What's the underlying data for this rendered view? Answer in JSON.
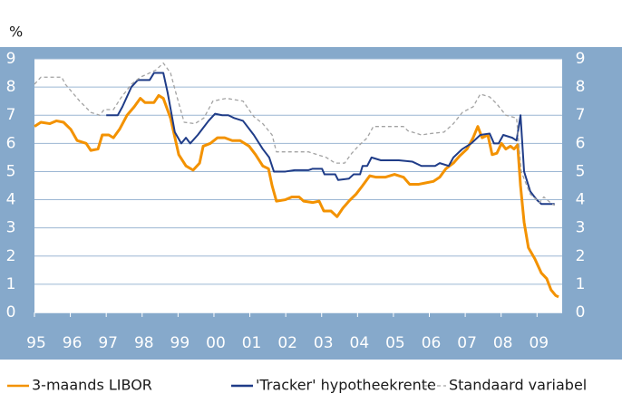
{
  "chart_data": {
    "type": "line",
    "y_label": "%",
    "xlim": [
      1995,
      2009.7
    ],
    "ylim": [
      0,
      9
    ],
    "xticks": [
      {
        "value": 1995,
        "label": "95"
      },
      {
        "value": 1996,
        "label": "96"
      },
      {
        "value": 1997,
        "label": "97"
      },
      {
        "value": 1998,
        "label": "98"
      },
      {
        "value": 1999,
        "label": "99"
      },
      {
        "value": 2000,
        "label": "00"
      },
      {
        "value": 2001,
        "label": "01"
      },
      {
        "value": 2002,
        "label": "02"
      },
      {
        "value": 2003,
        "label": "03"
      },
      {
        "value": 2004,
        "label": "04"
      },
      {
        "value": 2005,
        "label": "05"
      },
      {
        "value": 2006,
        "label": "06"
      },
      {
        "value": 2007,
        "label": "07"
      },
      {
        "value": 2008,
        "label": "08"
      },
      {
        "value": 2009,
        "label": "09"
      }
    ],
    "yticks": [
      0,
      1,
      2,
      3,
      4,
      5,
      6,
      7,
      8,
      9
    ],
    "grid": true,
    "series": [
      {
        "name": "3-maands LIBOR",
        "color": "#f39200",
        "dash": false,
        "x": [
          1995,
          1995.18,
          1995.43,
          1995.61,
          1995.81,
          1996.01,
          1996.19,
          1996.44,
          1996.57,
          1996.77,
          1996.89,
          1997.07,
          1997.2,
          1997.37,
          1997.58,
          1997.78,
          1997.95,
          1998.08,
          1998.33,
          1998.46,
          1998.59,
          1998.79,
          1999.02,
          1999.22,
          1999.42,
          1999.6,
          1999.7,
          1999.9,
          2000.1,
          2000.3,
          2000.51,
          2000.73,
          2000.98,
          2001.16,
          2001.36,
          2001.52,
          2001.62,
          2001.74,
          2001.99,
          2002.17,
          2002.37,
          2002.5,
          2002.75,
          2002.93,
          2003.06,
          2003.26,
          2003.43,
          2003.59,
          2003.76,
          2003.96,
          2004.14,
          2004.34,
          2004.52,
          2004.77,
          2005.03,
          2005.28,
          2005.45,
          2005.71,
          2005.91,
          2006.11,
          2006.29,
          2006.46,
          2006.67,
          2006.84,
          2007.05,
          2007.22,
          2007.35,
          2007.47,
          2007.63,
          2007.75,
          2007.88,
          2008.01,
          2008.13,
          2008.26,
          2008.36,
          2008.46,
          2008.54,
          2008.64,
          2008.76,
          2008.94,
          2009.12,
          2009.27,
          2009.39,
          2009.52,
          2009.6
        ],
        "values": [
          6.6,
          6.75,
          6.7,
          6.8,
          6.75,
          6.5,
          6.1,
          6.0,
          5.75,
          5.8,
          6.3,
          6.3,
          6.2,
          6.5,
          7.0,
          7.3,
          7.6,
          7.45,
          7.45,
          7.7,
          7.6,
          6.9,
          5.6,
          5.2,
          5.05,
          5.3,
          5.9,
          6.0,
          6.2,
          6.2,
          6.1,
          6.1,
          5.9,
          5.6,
          5.2,
          5.1,
          4.5,
          3.95,
          4.0,
          4.1,
          4.1,
          3.95,
          3.9,
          3.95,
          3.6,
          3.6,
          3.4,
          3.7,
          3.95,
          4.2,
          4.5,
          4.85,
          4.8,
          4.8,
          4.9,
          4.8,
          4.55,
          4.55,
          4.6,
          4.65,
          4.8,
          5.1,
          5.3,
          5.55,
          5.8,
          6.2,
          6.6,
          6.2,
          6.3,
          5.6,
          5.65,
          6.0,
          5.8,
          5.9,
          5.8,
          5.95,
          4.5,
          3.2,
          2.3,
          1.9,
          1.4,
          1.2,
          0.8,
          0.6,
          0.55
        ]
      },
      {
        "name": "'Tracker' hypotheekrente",
        "color": "#1f3c88",
        "dash": false,
        "x": [
          1997,
          1997.32,
          1997.45,
          1997.7,
          1997.88,
          1998.21,
          1998.33,
          1998.59,
          1998.71,
          1998.91,
          1999.09,
          1999.22,
          1999.34,
          1999.55,
          1999.67,
          1999.85,
          2000.03,
          2000.23,
          2000.4,
          2000.56,
          2000.81,
          2001.11,
          2001.36,
          2001.54,
          2001.67,
          2001.99,
          2002.25,
          2002.63,
          2002.75,
          2003.01,
          2003.08,
          2003.38,
          2003.46,
          2003.76,
          2003.89,
          2004.07,
          2004.14,
          2004.27,
          2004.39,
          2004.65,
          2005.15,
          2005.53,
          2005.78,
          2006.16,
          2006.29,
          2006.54,
          2006.67,
          2006.92,
          2007.17,
          2007.42,
          2007.68,
          2007.8,
          2007.93,
          2008.06,
          2008.31,
          2008.43,
          2008.54,
          2008.64,
          2008.81,
          2008.99,
          2009.12,
          2009.27,
          2009.49
        ],
        "values": [
          7.0,
          7.0,
          7.3,
          8.0,
          8.25,
          8.25,
          8.5,
          8.5,
          7.8,
          6.4,
          6.0,
          6.2,
          6.0,
          6.3,
          6.5,
          6.8,
          7.05,
          7.0,
          7.0,
          6.9,
          6.8,
          6.3,
          5.8,
          5.5,
          5.0,
          5.0,
          5.05,
          5.05,
          5.1,
          5.1,
          4.9,
          4.9,
          4.7,
          4.75,
          4.9,
          4.9,
          5.2,
          5.2,
          5.5,
          5.4,
          5.4,
          5.35,
          5.2,
          5.2,
          5.3,
          5.2,
          5.5,
          5.8,
          6.0,
          6.3,
          6.35,
          6.0,
          6.0,
          6.3,
          6.2,
          6.1,
          7.0,
          5.0,
          4.3,
          4.0,
          3.85,
          3.85,
          3.85
        ]
      },
      {
        "name": "Standaard variabel",
        "color": "#a3a3a3",
        "dash": true,
        "x": [
          1995,
          1995.18,
          1995.76,
          1995.86,
          1996.06,
          1996.26,
          1996.57,
          1996.82,
          1996.94,
          1997.2,
          1997.4,
          1997.7,
          1997.95,
          1998.21,
          1998.38,
          1998.59,
          1998.79,
          1998.96,
          1999.17,
          1999.47,
          1999.72,
          1999.97,
          2000.35,
          2000.81,
          2001.11,
          2001.36,
          2001.62,
          2001.74,
          2002.63,
          2002.88,
          2003.13,
          2003.38,
          2003.64,
          2003.84,
          2004.02,
          2004.27,
          2004.44,
          2005.28,
          2005.4,
          2005.78,
          2006.04,
          2006.41,
          2006.67,
          2006.92,
          2007.22,
          2007.42,
          2007.68,
          2007.88,
          2008.13,
          2008.43,
          2008.56,
          2008.81,
          2009.07,
          2009.19,
          2009.37,
          2009.49
        ],
        "values": [
          8.1,
          8.35,
          8.35,
          8.1,
          7.8,
          7.5,
          7.1,
          7.0,
          7.2,
          7.2,
          7.6,
          8.1,
          8.35,
          8.5,
          8.6,
          8.85,
          8.5,
          7.7,
          6.75,
          6.7,
          6.9,
          7.5,
          7.6,
          7.5,
          6.95,
          6.7,
          6.3,
          5.7,
          5.7,
          5.6,
          5.5,
          5.3,
          5.3,
          5.65,
          5.9,
          6.2,
          6.6,
          6.6,
          6.45,
          6.3,
          6.35,
          6.4,
          6.7,
          7.1,
          7.3,
          7.75,
          7.65,
          7.4,
          7.0,
          6.9,
          5.0,
          4.2,
          3.9,
          4.1,
          3.9,
          3.8
        ]
      }
    ]
  }
}
